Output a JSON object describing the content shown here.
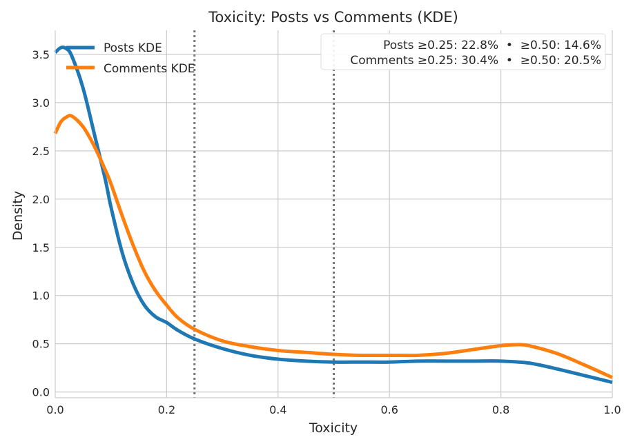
{
  "chart_data": {
    "type": "line",
    "title": "Toxicity: Posts vs Comments (KDE)",
    "xlabel": "Toxicity",
    "ylabel": "Density",
    "xlim": [
      0.0,
      1.0
    ],
    "ylim": [
      -0.06,
      3.75
    ],
    "xticks": [
      0.0,
      0.2,
      0.4,
      0.6,
      0.8,
      1.0
    ],
    "xtick_labels": [
      "0.0",
      "0.2",
      "0.4",
      "0.6",
      "0.8",
      "1.0"
    ],
    "yticks": [
      0.0,
      0.5,
      1.0,
      1.5,
      2.0,
      2.5,
      3.0,
      3.5
    ],
    "ytick_labels": [
      "0.0",
      "0.5",
      "1.0",
      "1.5",
      "2.0",
      "2.5",
      "3.0",
      "3.5"
    ],
    "grid": true,
    "legend_position": "top-left",
    "thresholds": [
      0.25,
      0.5
    ],
    "stats_lines": [
      "Posts ≥0.25: 22.8%  •  ≥0.50: 14.6%",
      "Comments ≥0.25: 30.4%  •  ≥0.50: 20.5%"
    ],
    "series": [
      {
        "name": "Posts KDE",
        "color": "#1f77b4",
        "x": [
          0.0,
          0.01,
          0.02,
          0.03,
          0.05,
          0.07,
          0.09,
          0.1,
          0.12,
          0.14,
          0.16,
          0.18,
          0.2,
          0.22,
          0.25,
          0.3,
          0.35,
          0.4,
          0.45,
          0.5,
          0.55,
          0.6,
          0.65,
          0.7,
          0.75,
          0.8,
          0.85,
          0.9,
          0.95,
          1.0
        ],
        "y": [
          3.52,
          3.57,
          3.56,
          3.48,
          3.15,
          2.68,
          2.2,
          1.92,
          1.45,
          1.12,
          0.9,
          0.78,
          0.72,
          0.64,
          0.55,
          0.45,
          0.38,
          0.34,
          0.32,
          0.31,
          0.31,
          0.31,
          0.32,
          0.32,
          0.32,
          0.32,
          0.3,
          0.24,
          0.17,
          0.1
        ]
      },
      {
        "name": "Comments KDE",
        "color": "#ff7f0e",
        "x": [
          0.0,
          0.01,
          0.02,
          0.03,
          0.05,
          0.07,
          0.09,
          0.1,
          0.12,
          0.14,
          0.16,
          0.18,
          0.2,
          0.22,
          0.25,
          0.3,
          0.35,
          0.4,
          0.45,
          0.5,
          0.55,
          0.6,
          0.65,
          0.7,
          0.75,
          0.8,
          0.83,
          0.85,
          0.9,
          0.95,
          1.0
        ],
        "y": [
          2.68,
          2.8,
          2.85,
          2.86,
          2.75,
          2.55,
          2.3,
          2.16,
          1.83,
          1.52,
          1.25,
          1.05,
          0.9,
          0.77,
          0.65,
          0.53,
          0.47,
          0.43,
          0.41,
          0.39,
          0.38,
          0.38,
          0.38,
          0.4,
          0.44,
          0.48,
          0.49,
          0.48,
          0.4,
          0.28,
          0.15
        ]
      }
    ]
  }
}
